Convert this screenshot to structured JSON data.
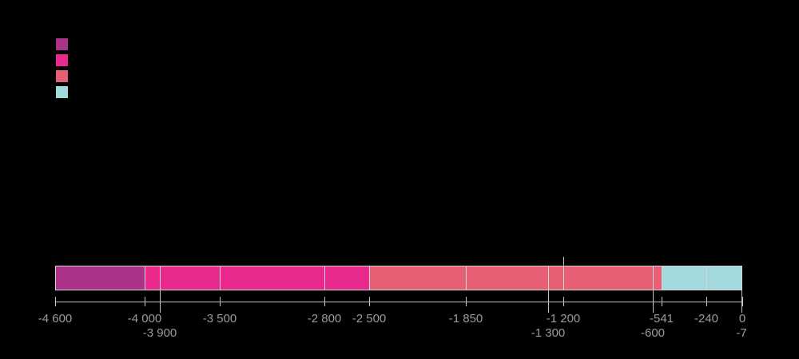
{
  "chart_data": {
    "type": "bar",
    "variant": "horizontal-timeline",
    "title": "",
    "xlabel": "",
    "ylabel": "",
    "grid": false,
    "axis": {
      "min": -4600,
      "max": 0
    },
    "series_colors": {
      "purple": "#ac3189",
      "pink": "#e9298c",
      "salmon": "#e65f75",
      "blue": "#a2d9dd"
    },
    "segments": [
      {
        "from": -4600,
        "to": -4000,
        "color_key": "purple"
      },
      {
        "from": -4000,
        "to": -3900,
        "color_key": "pink"
      },
      {
        "from": -3900,
        "to": -3500,
        "color_key": "pink"
      },
      {
        "from": -3500,
        "to": -2800,
        "color_key": "pink"
      },
      {
        "from": -2800,
        "to": -2500,
        "color_key": "pink"
      },
      {
        "from": -2500,
        "to": -1850,
        "color_key": "salmon"
      },
      {
        "from": -1850,
        "to": -1300,
        "color_key": "salmon"
      },
      {
        "from": -1300,
        "to": -1200,
        "color_key": "salmon"
      },
      {
        "from": -1200,
        "to": -600,
        "color_key": "salmon"
      },
      {
        "from": -600,
        "to": -541,
        "color_key": "salmon"
      },
      {
        "from": -541,
        "to": -240,
        "color_key": "blue"
      },
      {
        "from": -240,
        "to": -7,
        "color_key": "blue"
      },
      {
        "from": -7,
        "to": 0,
        "color_key": "blue"
      }
    ],
    "ticks_row1": [
      {
        "value": -4600,
        "label": "-4 600"
      },
      {
        "value": -4000,
        "label": "-4 000"
      },
      {
        "value": -3500,
        "label": "-3 500"
      },
      {
        "value": -2800,
        "label": "-2 800"
      },
      {
        "value": -2500,
        "label": "-2 500"
      },
      {
        "value": -1850,
        "label": "-1 850"
      },
      {
        "value": -1200,
        "label": "-1 200"
      },
      {
        "value": -541,
        "label": "-541"
      },
      {
        "value": -240,
        "label": "-240"
      },
      {
        "value": 0,
        "label": "0"
      }
    ],
    "ticks_row2": [
      {
        "value": -3900,
        "label": "-3 900"
      },
      {
        "value": -1300,
        "label": "-1 300"
      },
      {
        "value": -600,
        "label": "-600"
      },
      {
        "value": -7,
        "label": "-7"
      }
    ],
    "annotations": [
      {
        "value": -1200,
        "kind": "marker-line-above-bar"
      }
    ],
    "legend": {
      "position": "top-left",
      "swatch_colors": [
        "#ac3189",
        "#e9298c",
        "#e65f75",
        "#a2d9dd"
      ]
    }
  },
  "styles": {
    "background": "#000000",
    "axis_color": "#c4c4c4",
    "tick_color": "#c4c4c4",
    "segment_border": "#d6d6d6",
    "label_color": "#9b9b9b"
  }
}
